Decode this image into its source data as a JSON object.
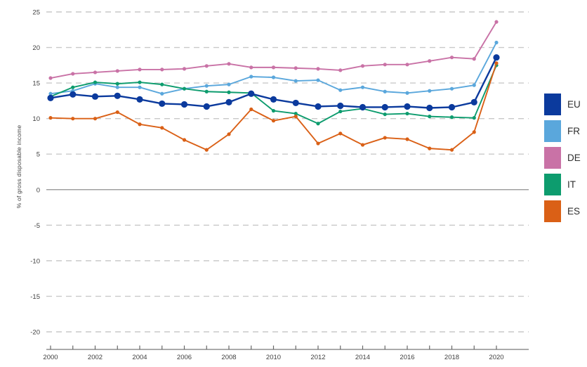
{
  "chart_data": {
    "type": "line",
    "title": "",
    "xlabel": "",
    "ylabel": "% of gross disposable income",
    "x": [
      2000,
      2001,
      2002,
      2003,
      2004,
      2005,
      2006,
      2007,
      2008,
      2009,
      2010,
      2011,
      2012,
      2013,
      2014,
      2015,
      2016,
      2017,
      2018,
      2019,
      2020
    ],
    "x_tick_years": [
      2000,
      2002,
      2004,
      2006,
      2008,
      2010,
      2012,
      2014,
      2016,
      2018,
      2020
    ],
    "y_ticks": [
      25,
      20,
      15,
      10,
      5,
      0,
      -5,
      -10,
      -15,
      -20
    ],
    "xlim": [
      1999.8,
      2021.4
    ],
    "ylim": [
      -20,
      25
    ],
    "grid": "horizontal-dashed",
    "legend_position": "right",
    "series": [
      {
        "name": "EU",
        "color": "#0b3a9d",
        "marker": "large",
        "values": [
          12.9,
          13.4,
          13.1,
          13.2,
          12.7,
          12.1,
          12.0,
          11.7,
          12.3,
          13.5,
          12.7,
          12.2,
          11.7,
          11.8,
          11.6,
          11.6,
          11.7,
          11.5,
          11.6,
          12.3,
          18.6
        ]
      },
      {
        "name": "FR",
        "color": "#5aa7dc",
        "marker": "small",
        "values": [
          13.5,
          13.9,
          14.9,
          14.4,
          14.4,
          13.5,
          14.2,
          14.6,
          14.8,
          15.9,
          15.8,
          15.3,
          15.4,
          14.0,
          14.4,
          13.8,
          13.6,
          13.9,
          14.2,
          14.7,
          20.7
        ]
      },
      {
        "name": "DE",
        "color": "#c972a6",
        "marker": "small",
        "values": [
          15.7,
          16.3,
          16.5,
          16.7,
          16.9,
          16.9,
          17.0,
          17.4,
          17.7,
          17.2,
          17.2,
          17.1,
          17.0,
          16.8,
          17.4,
          17.6,
          17.6,
          18.1,
          18.6,
          18.4,
          23.6
        ]
      },
      {
        "name": "IT",
        "color": "#0d9c6e",
        "marker": "small",
        "values": [
          13.1,
          14.4,
          15.1,
          14.9,
          15.1,
          14.8,
          14.2,
          13.8,
          13.7,
          13.6,
          11.1,
          10.7,
          9.3,
          11.0,
          11.4,
          10.6,
          10.7,
          10.3,
          10.2,
          10.1,
          17.5
        ]
      },
      {
        "name": "ES",
        "color": "#da6016",
        "marker": "small",
        "values": [
          10.1,
          10.0,
          10.0,
          10.9,
          9.2,
          8.7,
          7.0,
          5.6,
          7.8,
          11.3,
          9.7,
          10.3,
          6.5,
          7.9,
          6.3,
          7.3,
          7.1,
          5.8,
          5.6,
          8.1,
          17.8
        ]
      }
    ],
    "colors": {
      "axis_text": "#404040",
      "grid": "#c9c9c9",
      "zero_line": "#8f8f8f",
      "axis_line": "#8f8f8f",
      "background": "#ffffff"
    }
  }
}
